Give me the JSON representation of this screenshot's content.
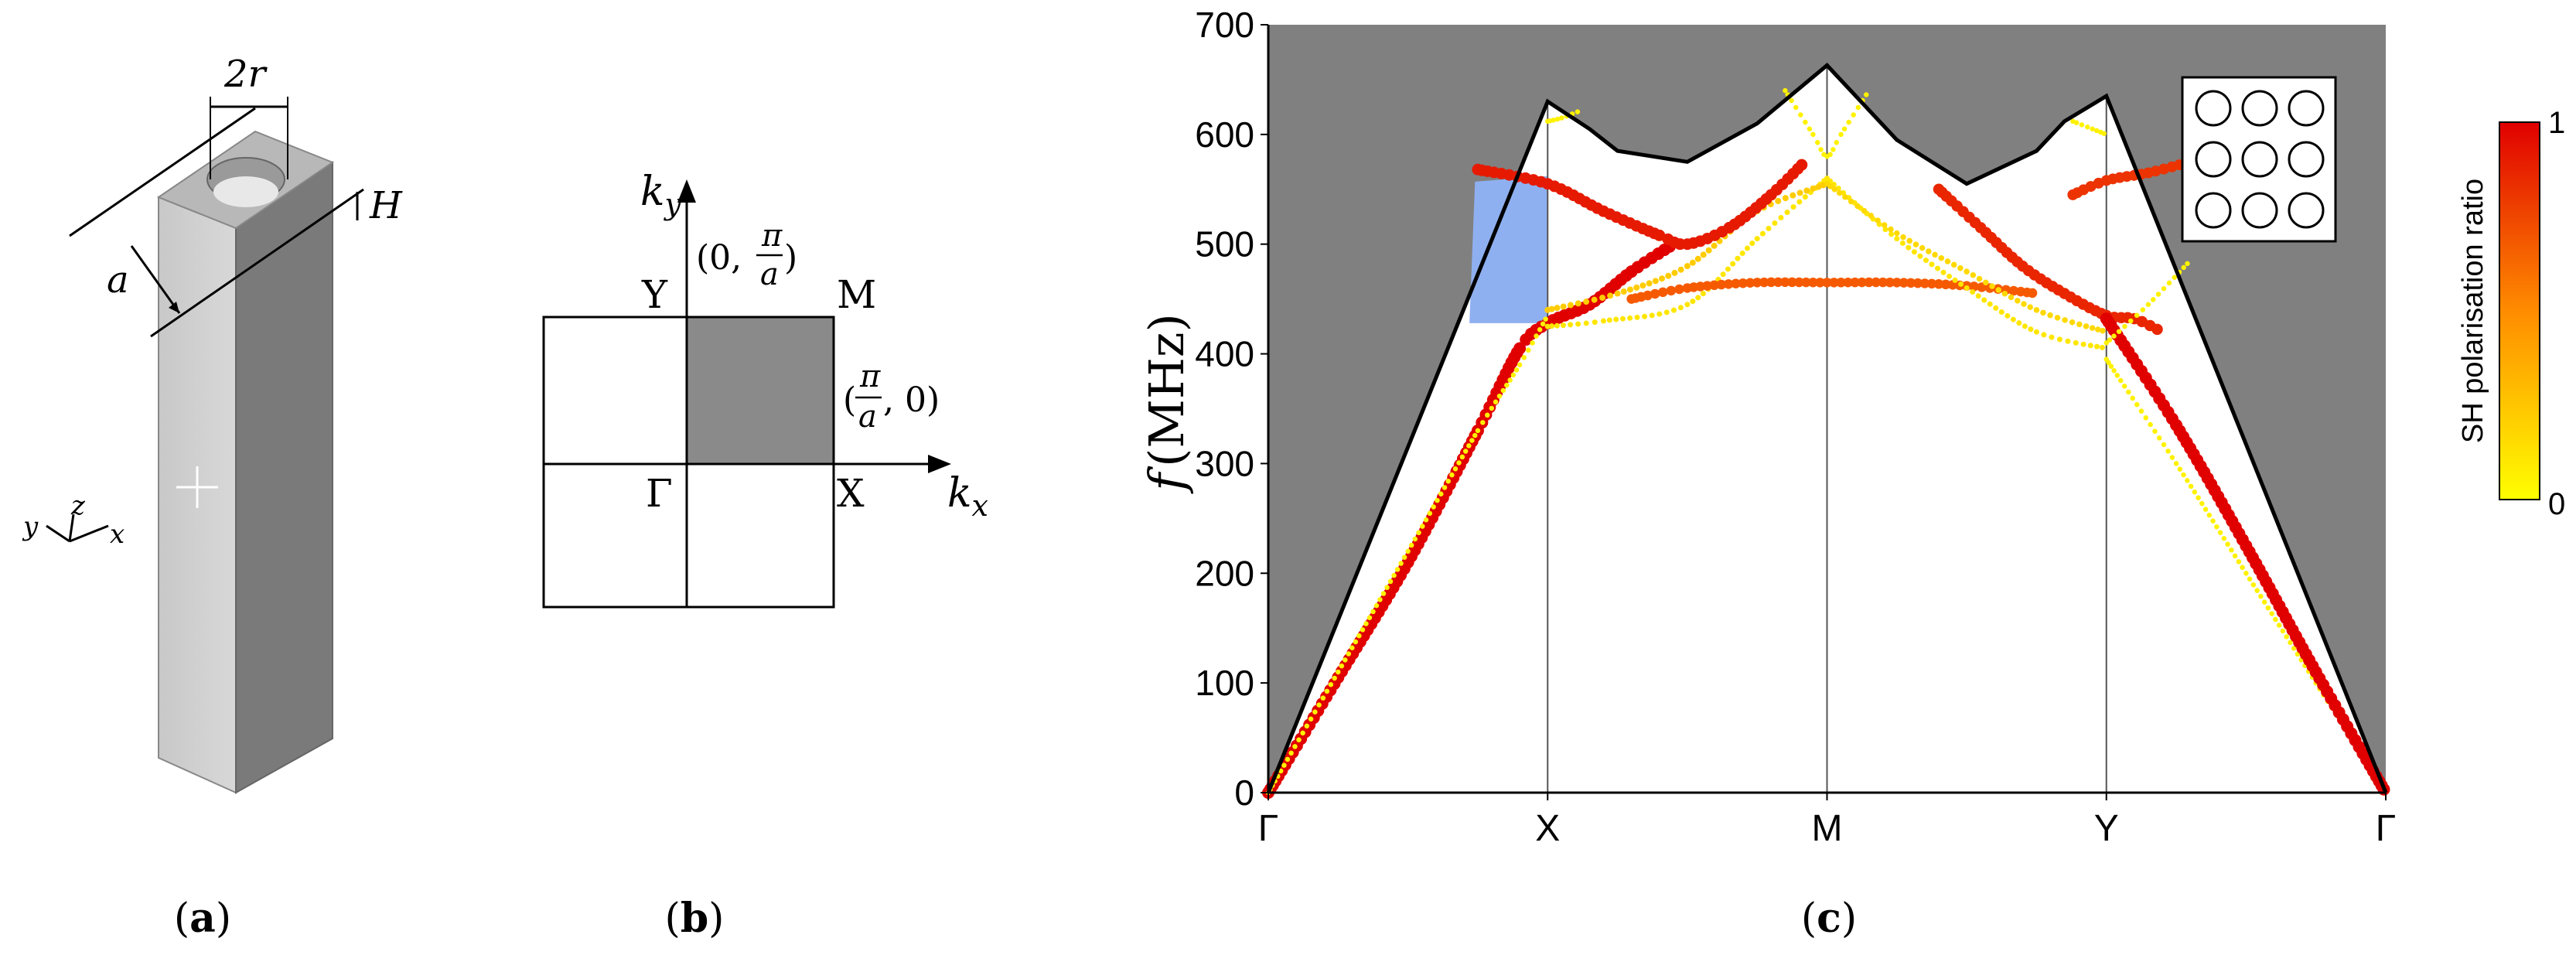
{
  "panel_a": {
    "caption_open": "(",
    "caption_letter": "a",
    "caption_close": ")",
    "dim_diameter": "2r",
    "dim_height": "H",
    "dim_width": "a",
    "axis_x": "x",
    "axis_y": "y",
    "axis_z": "z"
  },
  "panel_b": {
    "caption_open": "(",
    "caption_letter": "b",
    "caption_close": ")",
    "axis_ky": "k",
    "axis_ky_sub": "y",
    "axis_kx": "k",
    "axis_kx_sub": "x",
    "label_Y": "Y",
    "label_M": "M",
    "label_Gamma": "Γ",
    "label_X": "X",
    "coord_Y_open": "(0,",
    "coord_Y_pi": "π",
    "coord_Y_a": "a",
    "coord_Y_close": ")",
    "coord_X_open": "(",
    "coord_X_pi": "π",
    "coord_X_a": "a",
    "coord_X_close": ", 0)"
  },
  "panel_c": {
    "caption_open": "(",
    "caption_letter": "c",
    "caption_close": ")"
  },
  "chart_data": {
    "type": "line",
    "ylabel_italic": "f",
    "ylabel_rest": "(MHz)",
    "xlabel": "",
    "x_ticks": [
      "Γ",
      "X",
      "M",
      "Y",
      "Γ"
    ],
    "x_tick_positions": [
      0,
      1,
      2,
      3,
      4
    ],
    "ylim": [
      0,
      700
    ],
    "y_ticks": [
      0,
      100,
      200,
      300,
      400,
      500,
      600,
      700
    ],
    "grid": "vertical lines at symmetry points",
    "colorbar": {
      "label": "SH polarisation ratio",
      "min_label": "0",
      "max_label": "1",
      "range": [
        0,
        1
      ],
      "colors": [
        "#ffff00",
        "#ff8000",
        "#e00000"
      ]
    },
    "inset": "3x3 array of circular holes",
    "background_color": "#808080",
    "bandgap_highlight_color": "#8fb0f0",
    "sound_cone": {
      "x": [
        0,
        1,
        1.15,
        1.25,
        1.5,
        1.75,
        2,
        2.25,
        2.5,
        2.75,
        2.85,
        3,
        4
      ],
      "y": [
        0,
        630,
        605,
        585,
        575,
        610,
        663,
        595,
        555,
        585,
        612,
        635,
        0
      ]
    },
    "bandgap": {
      "x_range": [
        0.72,
        1.0
      ],
      "y_range": [
        428,
        562
      ]
    },
    "series": [
      {
        "sh_ratio": 1.0,
        "x": [
          0,
          0.25,
          0.5,
          0.75,
          0.9,
          1.0,
          1.15,
          1.3,
          1.45
        ],
        "y": [
          0,
          105,
          210,
          330,
          405,
          428,
          445,
          475,
          500
        ]
      },
      {
        "sh_ratio": 0.05,
        "x": [
          0,
          0.25,
          0.5,
          0.75,
          0.9,
          1.0
        ],
        "y": [
          0,
          110,
          220,
          330,
          390,
          435
        ]
      },
      {
        "sh_ratio": 0.1,
        "x": [
          1.0,
          1.2,
          1.5,
          1.75,
          2.0
        ],
        "y": [
          425,
          430,
          445,
          505,
          560
        ]
      },
      {
        "sh_ratio": 0.2,
        "x": [
          1.0,
          1.25,
          1.5,
          1.75,
          2.0
        ],
        "y": [
          440,
          455,
          480,
          530,
          555
        ]
      },
      {
        "sh_ratio": 0.65,
        "x": [
          1.3,
          1.5,
          1.75,
          2.0,
          2.25,
          2.5,
          2.75
        ],
        "y": [
          450,
          460,
          465,
          465,
          465,
          462,
          455
        ]
      },
      {
        "sh_ratio": 0.9,
        "x": [
          0.75,
          1.0,
          1.2,
          1.4,
          1.5,
          1.65,
          1.8,
          1.92
        ],
        "y": [
          568,
          555,
          530,
          508,
          500,
          515,
          545,
          575
        ]
      },
      {
        "sh_ratio": 0.1,
        "x": [
          2.0,
          2.25,
          2.5,
          2.75,
          3.0
        ],
        "y": [
          560,
          505,
          460,
          420,
          405
        ]
      },
      {
        "sh_ratio": 0.15,
        "x": [
          2.0,
          2.25,
          2.5,
          2.75,
          3.0
        ],
        "y": [
          555,
          510,
          475,
          440,
          420
        ]
      },
      {
        "sh_ratio": 0.85,
        "x": [
          2.4,
          2.55,
          2.7,
          2.85,
          3.0,
          3.1,
          3.2
        ],
        "y": [
          550,
          515,
          480,
          455,
          435,
          432,
          420
        ]
      },
      {
        "sh_ratio": 0.8,
        "x": [
          2.88,
          3.0,
          3.15,
          3.3
        ],
        "y": [
          545,
          558,
          565,
          575
        ]
      },
      {
        "sh_ratio": 0.05,
        "x": [
          3.0,
          3.25,
          3.5,
          3.75,
          4.0
        ],
        "y": [
          395,
          300,
          200,
          100,
          0
        ]
      },
      {
        "sh_ratio": 1.0,
        "x": [
          3.0,
          3.25,
          3.5,
          3.75,
          4.0
        ],
        "y": [
          432,
          335,
          225,
          110,
          0
        ]
      },
      {
        "sh_ratio": 0.05,
        "x": [
          3.0,
          3.15,
          3.3
        ],
        "y": [
          410,
          445,
          485
        ]
      },
      {
        "sh_ratio": 0.05,
        "x": [
          1.0,
          1.05,
          1.12
        ],
        "y": [
          612,
          615,
          622
        ]
      },
      {
        "sh_ratio": 0.05,
        "x": [
          1.85,
          1.95,
          2.0,
          2.05,
          2.15
        ],
        "y": [
          640,
          600,
          580,
          600,
          640
        ]
      },
      {
        "sh_ratio": 0.05,
        "x": [
          2.88,
          2.95,
          3.0
        ],
        "y": [
          612,
          605,
          600
        ]
      }
    ]
  }
}
